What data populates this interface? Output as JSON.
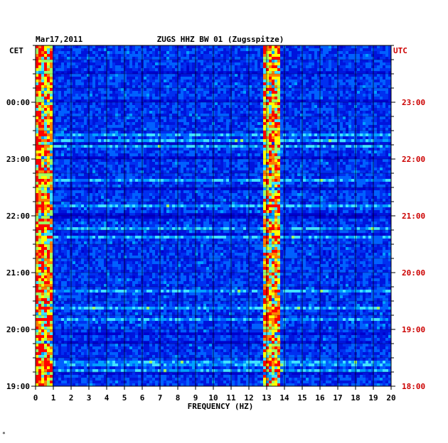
{
  "chart_data": {
    "type": "heatmap",
    "title_date": "Mar17,2011",
    "title": "ZUGS HHZ BW 01 (Zugsspitze)",
    "left_axis_label": "CET",
    "right_axis_label": "UTC",
    "xlabel": "FREQUENCY (HZ)",
    "x_ticks": [
      "0",
      "1",
      "2",
      "3",
      "4",
      "5",
      "6",
      "7",
      "8",
      "9",
      "10",
      "11",
      "12",
      "13",
      "14",
      "15",
      "16",
      "17",
      "18",
      "19",
      "20"
    ],
    "xlim": [
      0,
      20
    ],
    "left_ticks": [
      "00:00",
      "23:00",
      "22:00",
      "21:00",
      "20:00",
      "19:00"
    ],
    "right_ticks": [
      "23:00",
      "22:00",
      "21:00",
      "20:00",
      "19:00",
      "18:00"
    ],
    "colors": {
      "background": "#0000cc",
      "low": "#0010d8",
      "mid": "#00a0ff",
      "high": "#ffff00",
      "peak": "#ff0000",
      "right_axis_text": "#cc0000",
      "axis_text": "#000000"
    },
    "energy_bands_hz": [
      {
        "range": [
          0,
          1
        ],
        "level": "high"
      },
      {
        "range": [
          12.8,
          13.8
        ],
        "level": "high"
      }
    ]
  },
  "footer_mark": "*"
}
